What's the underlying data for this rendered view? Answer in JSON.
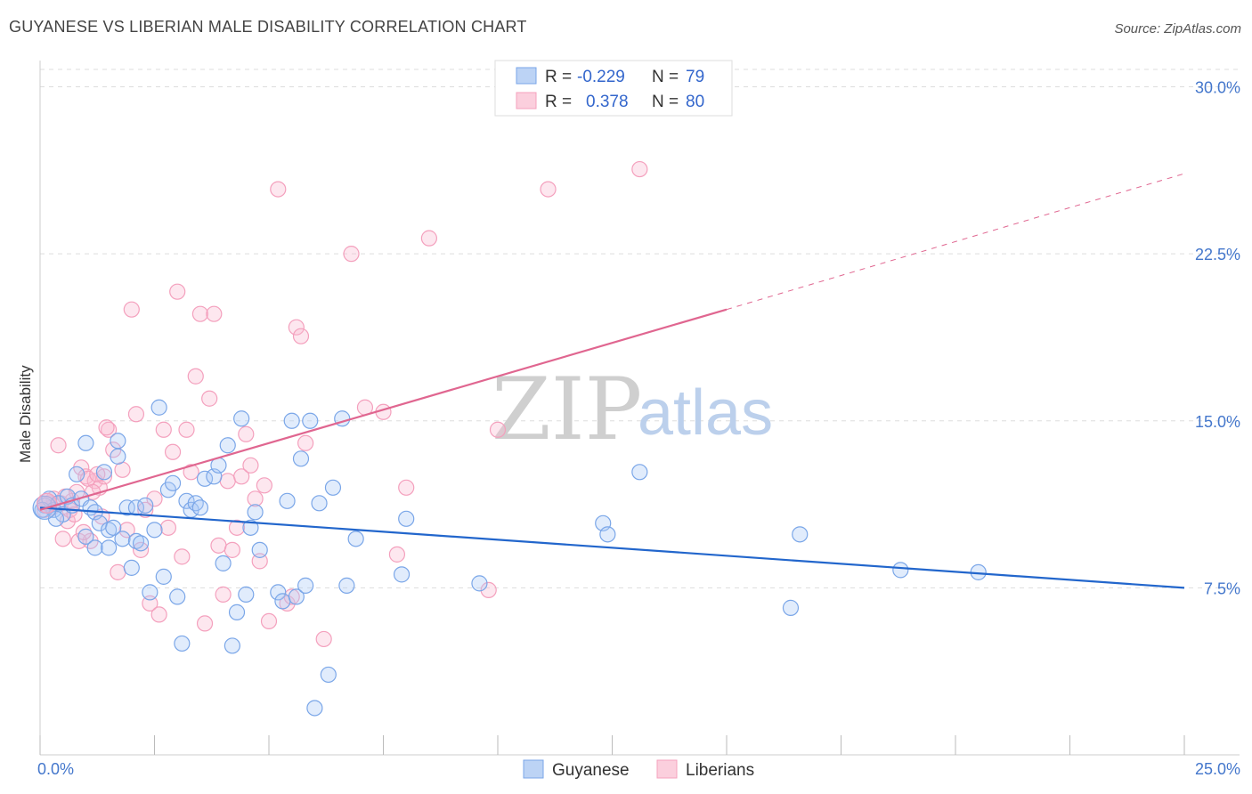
{
  "title": "GUYANESE VS LIBERIAN MALE DISABILITY CORRELATION CHART",
  "source": "Source: ZipAtlas.com",
  "watermark": {
    "zip": "ZIP",
    "atlas": "atlas"
  },
  "chart_data": {
    "type": "scatter",
    "xlabel": "",
    "ylabel": "Male Disability",
    "xlim": [
      0,
      25
    ],
    "ylim": [
      0,
      31.5
    ],
    "x_tick_labels": [
      "0.0%",
      "25.0%"
    ],
    "y_ticks": [
      7.5,
      15.0,
      22.5,
      30.0
    ],
    "y_tick_labels": [
      "7.5%",
      "15.0%",
      "22.5%",
      "30.0%"
    ],
    "grid": "horizontal dashed",
    "legend": {
      "placement": "top-center",
      "entries": [
        {
          "r_label": "R =",
          "r_value": "-0.229",
          "n_label": "N =",
          "n_value": "79"
        },
        {
          "r_label": "R =",
          "r_value": "0.378",
          "n_label": "N =",
          "n_value": "80"
        }
      ]
    },
    "series": [
      {
        "name": "Guyanese",
        "color": "#7aa6e8",
        "line_color": "#2266cc",
        "trend": {
          "x0": 0,
          "y0": 11.1,
          "x1": 25,
          "y1": 7.5
        },
        "points": [
          [
            0.1,
            11.2
          ],
          [
            0.2,
            11.5
          ],
          [
            0.3,
            11.0
          ],
          [
            0.4,
            11.3
          ],
          [
            0.5,
            10.8
          ],
          [
            0.6,
            11.6
          ],
          [
            0.7,
            11.2
          ],
          [
            0.8,
            12.6
          ],
          [
            0.9,
            11.5
          ],
          [
            1.0,
            14.0
          ],
          [
            1.0,
            9.8
          ],
          [
            1.1,
            11.1
          ],
          [
            1.2,
            10.9
          ],
          [
            1.2,
            9.3
          ],
          [
            1.3,
            10.4
          ],
          [
            1.4,
            12.7
          ],
          [
            1.5,
            9.3
          ],
          [
            1.5,
            10.1
          ],
          [
            1.6,
            10.2
          ],
          [
            1.7,
            13.4
          ],
          [
            1.7,
            14.1
          ],
          [
            1.8,
            9.7
          ],
          [
            1.9,
            11.1
          ],
          [
            2.0,
            8.4
          ],
          [
            2.1,
            9.6
          ],
          [
            2.1,
            11.1
          ],
          [
            2.2,
            9.5
          ],
          [
            2.3,
            11.2
          ],
          [
            2.4,
            7.3
          ],
          [
            2.5,
            10.1
          ],
          [
            2.6,
            15.6
          ],
          [
            2.7,
            8.0
          ],
          [
            2.8,
            11.9
          ],
          [
            2.9,
            12.2
          ],
          [
            3.0,
            7.1
          ],
          [
            3.1,
            5.0
          ],
          [
            3.2,
            11.4
          ],
          [
            3.3,
            11.0
          ],
          [
            3.4,
            11.3
          ],
          [
            3.5,
            11.1
          ],
          [
            3.6,
            12.4
          ],
          [
            3.8,
            12.5
          ],
          [
            3.9,
            13.0
          ],
          [
            4.0,
            8.6
          ],
          [
            4.1,
            13.9
          ],
          [
            4.2,
            4.9
          ],
          [
            4.3,
            6.4
          ],
          [
            4.4,
            15.1
          ],
          [
            4.5,
            7.2
          ],
          [
            4.6,
            10.2
          ],
          [
            4.7,
            10.9
          ],
          [
            4.8,
            9.2
          ],
          [
            5.2,
            7.3
          ],
          [
            5.3,
            6.9
          ],
          [
            5.4,
            11.4
          ],
          [
            5.5,
            15.0
          ],
          [
            5.6,
            7.1
          ],
          [
            5.7,
            13.3
          ],
          [
            5.8,
            7.6
          ],
          [
            5.9,
            15.0
          ],
          [
            6.1,
            11.3
          ],
          [
            6.3,
            3.6
          ],
          [
            6.4,
            12.0
          ],
          [
            6.6,
            15.1
          ],
          [
            6.7,
            7.6
          ],
          [
            6.9,
            9.7
          ],
          [
            6.0,
            2.1
          ],
          [
            7.9,
            8.1
          ],
          [
            8.0,
            10.6
          ],
          [
            9.6,
            7.7
          ],
          [
            12.3,
            10.4
          ],
          [
            12.4,
            9.9
          ],
          [
            13.1,
            12.7
          ],
          [
            16.4,
            6.6
          ],
          [
            16.6,
            9.9
          ],
          [
            18.8,
            8.3
          ],
          [
            20.5,
            8.2
          ],
          [
            0.05,
            11.0
          ],
          [
            0.35,
            10.6
          ]
        ]
      },
      {
        "name": "Liberians",
        "color": "#f4a0bd",
        "line_color": "#e06690",
        "trend": {
          "x0": 0,
          "y0": 11.0,
          "x1": 15,
          "y1": 20.0
        },
        "trend_extension": {
          "x0": 15,
          "y0": 20.0,
          "x1": 25,
          "y1": 26.1
        },
        "points": [
          [
            0.1,
            11.0
          ],
          [
            0.2,
            11.3
          ],
          [
            0.3,
            11.5
          ],
          [
            0.4,
            13.9
          ],
          [
            0.5,
            9.7
          ],
          [
            0.6,
            10.5
          ],
          [
            0.7,
            11.4
          ],
          [
            0.8,
            11.8
          ],
          [
            0.9,
            12.9
          ],
          [
            1.0,
            12.5
          ],
          [
            1.1,
            9.6
          ],
          [
            1.2,
            12.3
          ],
          [
            1.3,
            12.0
          ],
          [
            1.4,
            12.5
          ],
          [
            1.5,
            14.6
          ],
          [
            1.6,
            13.7
          ],
          [
            1.7,
            8.2
          ],
          [
            1.8,
            12.8
          ],
          [
            1.9,
            10.1
          ],
          [
            2.0,
            20.0
          ],
          [
            2.1,
            15.3
          ],
          [
            2.2,
            9.2
          ],
          [
            2.3,
            11.0
          ],
          [
            2.4,
            6.8
          ],
          [
            2.5,
            11.5
          ],
          [
            2.6,
            6.3
          ],
          [
            2.7,
            14.6
          ],
          [
            2.8,
            10.2
          ],
          [
            2.9,
            13.6
          ],
          [
            3.0,
            20.8
          ],
          [
            3.1,
            8.9
          ],
          [
            3.2,
            14.6
          ],
          [
            3.3,
            12.7
          ],
          [
            3.4,
            17.0
          ],
          [
            3.5,
            19.8
          ],
          [
            3.6,
            5.9
          ],
          [
            3.7,
            16.0
          ],
          [
            3.8,
            19.8
          ],
          [
            3.9,
            9.4
          ],
          [
            4.0,
            7.2
          ],
          [
            4.1,
            12.3
          ],
          [
            4.2,
            9.2
          ],
          [
            4.3,
            10.2
          ],
          [
            4.4,
            12.5
          ],
          [
            4.5,
            14.4
          ],
          [
            4.6,
            13.0
          ],
          [
            4.7,
            11.5
          ],
          [
            4.8,
            8.7
          ],
          [
            4.9,
            12.1
          ],
          [
            5.0,
            6.0
          ],
          [
            5.2,
            25.4
          ],
          [
            5.4,
            6.8
          ],
          [
            5.5,
            7.1
          ],
          [
            5.6,
            19.2
          ],
          [
            5.7,
            18.8
          ],
          [
            5.8,
            14.0
          ],
          [
            6.2,
            5.2
          ],
          [
            6.8,
            22.5
          ],
          [
            7.1,
            15.6
          ],
          [
            7.5,
            15.4
          ],
          [
            7.8,
            9.0
          ],
          [
            8.0,
            12.0
          ],
          [
            8.5,
            23.2
          ],
          [
            9.8,
            7.4
          ],
          [
            10.0,
            14.6
          ],
          [
            11.1,
            25.4
          ],
          [
            13.1,
            26.3
          ],
          [
            0.15,
            11.4
          ],
          [
            0.25,
            11.1
          ],
          [
            0.45,
            11.3
          ],
          [
            0.55,
            11.6
          ],
          [
            0.65,
            11.0
          ],
          [
            0.75,
            10.8
          ],
          [
            0.85,
            9.6
          ],
          [
            0.95,
            10.0
          ],
          [
            1.05,
            12.4
          ],
          [
            1.15,
            11.8
          ],
          [
            1.25,
            12.6
          ],
          [
            1.35,
            10.7
          ],
          [
            1.45,
            14.7
          ]
        ]
      }
    ]
  },
  "bottom_legend": [
    {
      "label": "Guyanese",
      "color": "#7aa6e8"
    },
    {
      "label": "Liberians",
      "color": "#f4a0bd"
    }
  ]
}
